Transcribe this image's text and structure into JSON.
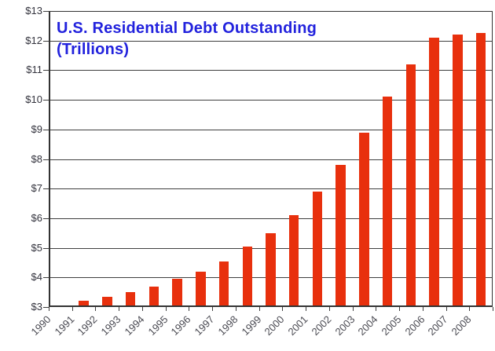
{
  "chart_data": {
    "type": "bar",
    "title": "U.S. Residential Debt Outstanding",
    "subtitle": "(Trillions)",
    "categories": [
      "1990",
      "1991",
      "1992",
      "1993",
      "1994",
      "1995",
      "1996",
      "1997",
      "1998",
      "1999",
      "2000",
      "2001",
      "2002",
      "2003",
      "2004",
      "2005",
      "2006",
      "2007",
      "2008"
    ],
    "values": [
      3.05,
      3.2,
      3.35,
      3.5,
      3.7,
      3.95,
      4.2,
      4.55,
      5.05,
      5.5,
      6.1,
      6.9,
      7.8,
      8.9,
      10.1,
      11.2,
      12.1,
      12.2,
      12.25
    ],
    "xlabel": "",
    "ylabel": "",
    "ylim": [
      3,
      13
    ],
    "y_tick_labels": [
      "$3",
      "$4",
      "$5",
      "$6",
      "$7",
      "$8",
      "$9",
      "$10",
      "$11",
      "$12",
      "$13"
    ],
    "grid": true,
    "legend": "none",
    "colors": {
      "bar": "#e8300d",
      "title": "#2222dd",
      "gridline": "#3f3f3f",
      "plot_border": "#333333",
      "y_axis_text": "#33333d",
      "x_axis_text": "#4a4a52",
      "tick": "#3f3f3f",
      "background": "#ffffff"
    }
  }
}
